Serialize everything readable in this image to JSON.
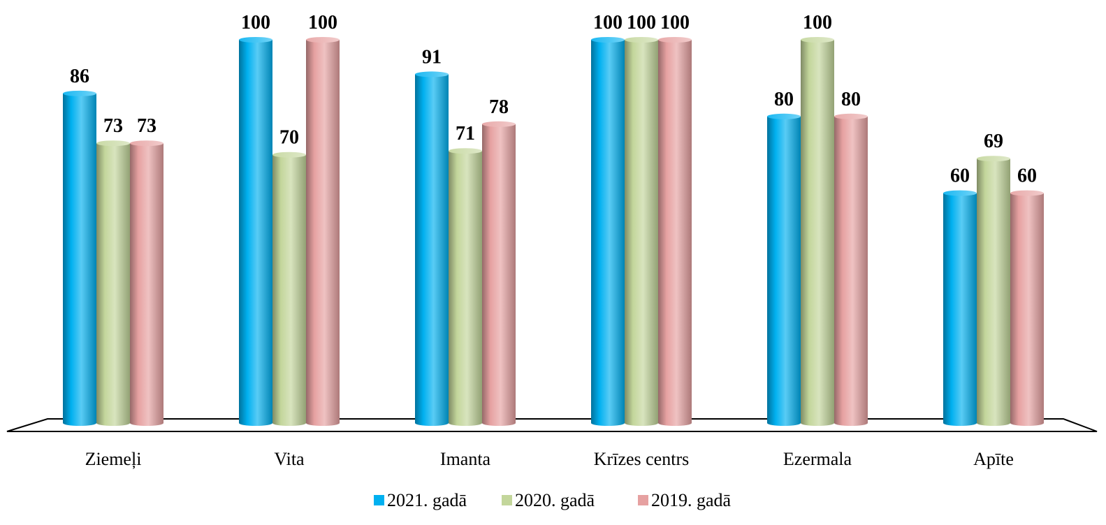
{
  "chart_data": {
    "type": "bar",
    "style": "3d-cylinder",
    "categories": [
      "Ziemeļi",
      "Vita",
      "Imanta",
      "Krīzes centrs",
      "Ezermala",
      "Apīte"
    ],
    "series": [
      {
        "name": "2021. gadā",
        "color": "#00b0f0",
        "values": [
          86,
          100,
          91,
          100,
          80,
          60
        ]
      },
      {
        "name": "2020. gadā",
        "color": "#c3d69b",
        "values": [
          73,
          70,
          71,
          100,
          100,
          69
        ]
      },
      {
        "name": "2019. gadā",
        "color": "#e6a1a1",
        "values": [
          73,
          100,
          78,
          100,
          80,
          60
        ]
      }
    ],
    "ylim": [
      0,
      100
    ],
    "grid": false,
    "value_labels": true,
    "legend_position": "bottom"
  }
}
